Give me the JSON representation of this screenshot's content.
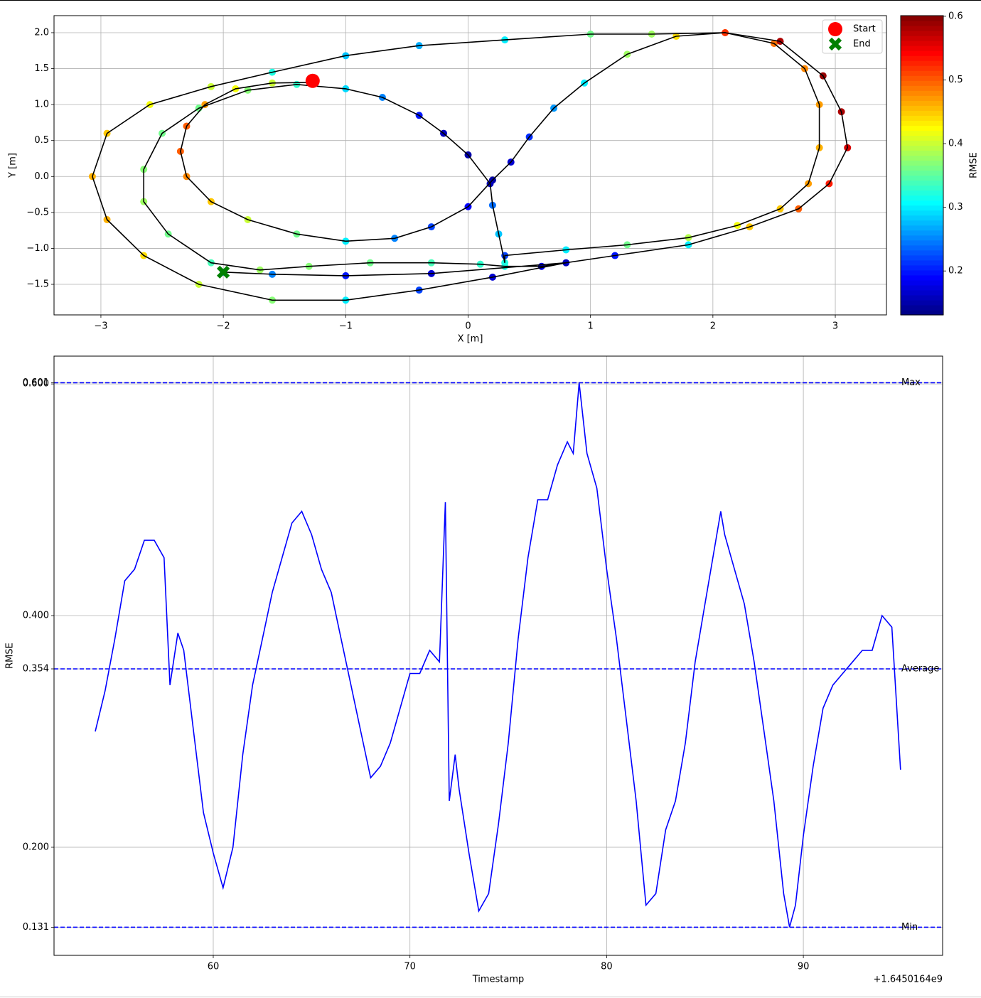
{
  "chart_data": [
    {
      "type": "scatter",
      "xlabel": "X [m]",
      "ylabel": "Y [m]",
      "colorbar_label": "RMSE",
      "colormap": "jet",
      "clim": [
        0.131,
        0.601
      ],
      "cticks": [
        0.2,
        0.3,
        0.4,
        0.5,
        0.6
      ],
      "line_color": "black",
      "x": [
        -1.27,
        -1.6,
        -1.9,
        -2.15,
        -2.3,
        -2.35,
        -2.3,
        -2.1,
        -1.8,
        -1.4,
        -1.0,
        -0.6,
        -0.3,
        0.0,
        0.2,
        0.35,
        0.5,
        0.7,
        0.95,
        1.3,
        1.7,
        2.1,
        2.5,
        2.75,
        2.87,
        2.87,
        2.78,
        2.55,
        2.2,
        1.8,
        1.3,
        0.8,
        0.3,
        0.3,
        0.25,
        0.2,
        0.18,
        0.0,
        -0.2,
        -0.4,
        -0.7,
        -1.0,
        -1.4,
        -1.8,
        -2.2,
        -2.5,
        -2.65,
        -2.65,
        -2.45,
        -2.1,
        -1.7,
        -1.3,
        -0.8,
        -0.3,
        0.1,
        0.3,
        0.6,
        1.2,
        1.8,
        2.3,
        2.7,
        2.95,
        3.1,
        3.05,
        2.9,
        2.55,
        2.1,
        1.5,
        1.0,
        0.3,
        -0.4,
        -1.0,
        -1.6,
        -2.1,
        -2.6,
        -2.95,
        -3.07,
        -2.95,
        -2.65,
        -2.2,
        -1.6,
        -1.0,
        -0.4,
        0.2,
        0.8,
        -0.3,
        -1.0,
        -1.6,
        -2.0
      ],
      "y": [
        1.31,
        1.3,
        1.22,
        1.0,
        0.7,
        0.35,
        0.0,
        -0.35,
        -0.6,
        -0.8,
        -0.9,
        -0.86,
        -0.7,
        -0.42,
        -0.05,
        0.2,
        0.55,
        0.95,
        1.3,
        1.7,
        1.95,
        2.0,
        1.85,
        1.5,
        1.0,
        0.4,
        -0.1,
        -0.45,
        -0.68,
        -0.85,
        -0.95,
        -1.02,
        -1.1,
        -1.2,
        -0.8,
        -0.4,
        -0.1,
        0.3,
        0.6,
        0.85,
        1.1,
        1.22,
        1.28,
        1.2,
        0.95,
        0.6,
        0.1,
        -0.35,
        -0.8,
        -1.2,
        -1.3,
        -1.25,
        -1.2,
        -1.2,
        -1.22,
        -1.25,
        -1.25,
        -1.1,
        -0.95,
        -0.7,
        -0.45,
        -0.1,
        0.4,
        0.9,
        1.4,
        1.88,
        2.0,
        1.98,
        1.98,
        1.9,
        1.82,
        1.68,
        1.45,
        1.25,
        1.0,
        0.6,
        0.0,
        -0.6,
        -1.1,
        -1.5,
        -1.72,
        -1.72,
        -1.58,
        -1.4,
        -1.2,
        -1.35,
        -1.38,
        -1.36,
        -1.33
      ],
      "values": [
        0.38,
        0.4,
        0.42,
        0.47,
        0.5,
        0.5,
        0.48,
        0.45,
        0.4,
        0.36,
        0.3,
        0.25,
        0.22,
        0.19,
        0.15,
        0.17,
        0.21,
        0.26,
        0.3,
        0.38,
        0.44,
        0.47,
        0.49,
        0.48,
        0.47,
        0.46,
        0.47,
        0.45,
        0.42,
        0.39,
        0.36,
        0.3,
        0.22,
        0.32,
        0.28,
        0.24,
        0.16,
        0.15,
        0.16,
        0.2,
        0.25,
        0.29,
        0.33,
        0.37,
        0.36,
        0.36,
        0.37,
        0.38,
        0.36,
        0.34,
        0.38,
        0.37,
        0.36,
        0.34,
        0.33,
        0.32,
        0.18,
        0.2,
        0.3,
        0.45,
        0.5,
        0.53,
        0.56,
        0.58,
        0.59,
        0.58,
        0.52,
        0.38,
        0.36,
        0.3,
        0.27,
        0.28,
        0.32,
        0.4,
        0.42,
        0.45,
        0.46,
        0.46,
        0.44,
        0.4,
        0.37,
        0.3,
        0.22,
        0.17,
        0.16,
        0.17,
        0.2,
        0.25,
        0.27
      ],
      "markers": [
        {
          "name": "Start",
          "color": "red",
          "shape": "circle",
          "x": -1.27,
          "y": 1.33
        },
        {
          "name": "End",
          "color": "green",
          "shape": "x",
          "x": -2.0,
          "y": -1.33
        }
      ],
      "legend": "upper right",
      "xlim": [
        -3.383,
        3.418
      ],
      "ylim": [
        -1.925,
        2.237
      ],
      "xticks": [
        {
          "value": -3,
          "label": "−3"
        },
        {
          "value": -2,
          "label": "−2"
        },
        {
          "value": -1,
          "label": "−1"
        },
        0,
        1,
        2,
        3
      ],
      "yticks": [
        {
          "value": -1.5,
          "label": "−1.5"
        },
        {
          "value": -1.0,
          "label": "−1.0"
        },
        {
          "value": -0.5,
          "label": "−0.5"
        },
        {
          "value": 0,
          "label": "0.0"
        },
        0.5,
        {
          "value": 1,
          "label": "1.0"
        },
        1.5,
        {
          "value": 2,
          "label": "2.0"
        }
      ],
      "grid": true
    },
    {
      "type": "line",
      "xlabel": "Timestamp",
      "ylabel": "RMSE",
      "x_offset_label": "+1.6450164e9",
      "color": "blue",
      "x": [
        54.0,
        54.5,
        55.0,
        55.5,
        56.0,
        56.5,
        57.0,
        57.5,
        57.8,
        58.2,
        58.5,
        59.0,
        59.5,
        60.0,
        60.5,
        61.0,
        61.5,
        62.0,
        62.5,
        63.0,
        63.5,
        64.0,
        64.5,
        65.0,
        65.5,
        66.0,
        66.5,
        67.0,
        67.5,
        68.0,
        68.5,
        69.0,
        69.5,
        70.0,
        70.5,
        71.0,
        71.5,
        71.8,
        72.0,
        72.3,
        72.5,
        73.0,
        73.5,
        74.0,
        74.5,
        75.0,
        75.5,
        76.0,
        76.5,
        77.0,
        77.5,
        78.0,
        78.3,
        78.6,
        79.0,
        79.5,
        80.0,
        80.5,
        81.0,
        81.5,
        82.0,
        82.5,
        83.0,
        83.5,
        84.0,
        84.5,
        85.0,
        85.5,
        85.8,
        86.0,
        86.5,
        87.0,
        87.5,
        88.0,
        88.5,
        89.0,
        89.3,
        89.6,
        90.0,
        90.5,
        91.0,
        91.5,
        92.0,
        92.5,
        93.0,
        93.5,
        94.0,
        94.5,
        94.94
      ],
      "values": [
        0.3,
        0.335,
        0.38,
        0.43,
        0.44,
        0.465,
        0.465,
        0.45,
        0.34,
        0.385,
        0.37,
        0.3,
        0.23,
        0.195,
        0.165,
        0.2,
        0.28,
        0.34,
        0.38,
        0.42,
        0.45,
        0.48,
        0.49,
        0.47,
        0.44,
        0.42,
        0.38,
        0.34,
        0.3,
        0.26,
        0.27,
        0.29,
        0.32,
        0.35,
        0.35,
        0.37,
        0.36,
        0.498,
        0.24,
        0.28,
        0.25,
        0.195,
        0.145,
        0.16,
        0.22,
        0.29,
        0.38,
        0.45,
        0.5,
        0.5,
        0.53,
        0.55,
        0.54,
        0.601,
        0.54,
        0.51,
        0.44,
        0.38,
        0.31,
        0.24,
        0.15,
        0.16,
        0.215,
        0.24,
        0.29,
        0.36,
        0.41,
        0.46,
        0.49,
        0.47,
        0.44,
        0.41,
        0.36,
        0.3,
        0.24,
        0.16,
        0.131,
        0.15,
        0.21,
        0.27,
        0.32,
        0.34,
        0.35,
        0.36,
        0.37,
        0.37,
        0.4,
        0.39,
        0.267
      ],
      "hlines": [
        {
          "label": "Max",
          "value": 0.601,
          "color": "blue",
          "label_color": "lightblue"
        },
        {
          "label": "Average",
          "value": 0.354,
          "color": "blue",
          "label_color": "lightblue"
        },
        {
          "label": "Min",
          "value": 0.131,
          "color": "blue",
          "label_color": "lightblue"
        }
      ],
      "xlim": [
        51.905,
        97.08
      ],
      "ylim": [
        0.1067,
        0.624
      ],
      "xticks": [
        60,
        70,
        80,
        90
      ],
      "yticks": [
        0.131,
        {
          "value": 0.2,
          "label": "0.200"
        },
        0.354,
        {
          "value": 0.4,
          "label": "0.400"
        },
        {
          "value": 0.6,
          "label": "0.600"
        },
        0.601
      ],
      "grid": true
    }
  ]
}
